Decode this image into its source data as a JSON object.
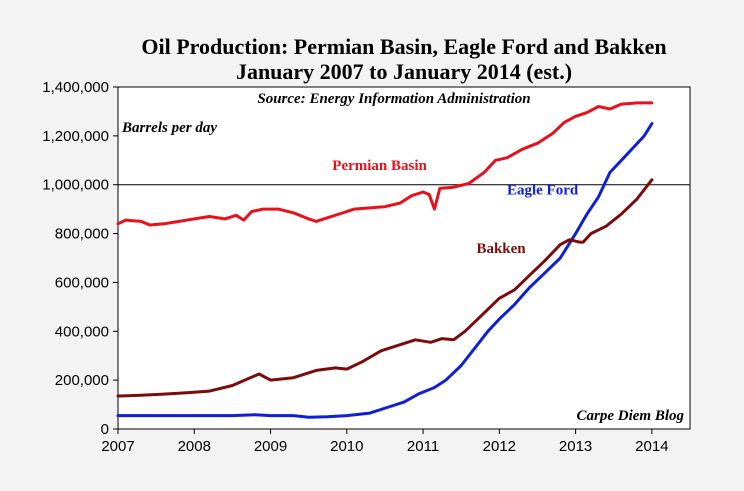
{
  "chart_data": {
    "type": "line",
    "title_lines": [
      "Oil Production: Permian Basin, Eagle Ford and Bakken",
      "January 2007 to January 2014 (est.)"
    ],
    "source": "Source: Energy Information Administration",
    "ylabel": "Barrels per day",
    "credit": "Carpe Diem Blog",
    "ylim": [
      0,
      1400000
    ],
    "xlim": [
      2007,
      2014.5
    ],
    "y_ticks": [
      0,
      200000,
      400000,
      600000,
      800000,
      1000000,
      1200000,
      1400000
    ],
    "y_tick_labels": [
      "0",
      "200,000",
      "400,000",
      "600,000",
      "800,000",
      "1,000,000",
      "1,200,000",
      "1,400,000"
    ],
    "x_ticks": [
      2007,
      2008,
      2009,
      2010,
      2011,
      2012,
      2013,
      2014
    ],
    "x_tick_labels": [
      "2007",
      "2008",
      "2009",
      "2010",
      "2011",
      "2012",
      "2013",
      "2014"
    ],
    "reference_line": 1000000,
    "grid": false,
    "series": [
      {
        "name": "Permian Basin",
        "color": "#e8111b",
        "points": [
          [
            2007.0,
            840000
          ],
          [
            2007.1,
            855000
          ],
          [
            2007.3,
            850000
          ],
          [
            2007.42,
            835000
          ],
          [
            2007.6,
            840000
          ],
          [
            2007.8,
            850000
          ],
          [
            2008.0,
            860000
          ],
          [
            2008.2,
            870000
          ],
          [
            2008.4,
            860000
          ],
          [
            2008.55,
            875000
          ],
          [
            2008.65,
            855000
          ],
          [
            2008.75,
            890000
          ],
          [
            2008.9,
            900000
          ],
          [
            2009.1,
            900000
          ],
          [
            2009.3,
            885000
          ],
          [
            2009.5,
            860000
          ],
          [
            2009.6,
            850000
          ],
          [
            2009.75,
            865000
          ],
          [
            2009.9,
            880000
          ],
          [
            2010.0,
            890000
          ],
          [
            2010.1,
            900000
          ],
          [
            2010.3,
            905000
          ],
          [
            2010.5,
            910000
          ],
          [
            2010.7,
            925000
          ],
          [
            2010.85,
            955000
          ],
          [
            2011.0,
            970000
          ],
          [
            2011.08,
            960000
          ],
          [
            2011.15,
            900000
          ],
          [
            2011.22,
            985000
          ],
          [
            2011.4,
            990000
          ],
          [
            2011.6,
            1005000
          ],
          [
            2011.8,
            1050000
          ],
          [
            2011.95,
            1100000
          ],
          [
            2012.1,
            1110000
          ],
          [
            2012.3,
            1145000
          ],
          [
            2012.5,
            1170000
          ],
          [
            2012.7,
            1210000
          ],
          [
            2012.85,
            1255000
          ],
          [
            2013.0,
            1280000
          ],
          [
            2013.15,
            1295000
          ],
          [
            2013.3,
            1320000
          ],
          [
            2013.45,
            1310000
          ],
          [
            2013.6,
            1330000
          ],
          [
            2013.8,
            1335000
          ],
          [
            2014.0,
            1335000
          ]
        ]
      },
      {
        "name": "Eagle Ford",
        "color": "#0e1fd6",
        "points": [
          [
            2007.0,
            55000
          ],
          [
            2007.5,
            55000
          ],
          [
            2007.8,
            55000
          ],
          [
            2008.0,
            55000
          ],
          [
            2008.5,
            55000
          ],
          [
            2008.8,
            58000
          ],
          [
            2009.0,
            55000
          ],
          [
            2009.3,
            55000
          ],
          [
            2009.5,
            48000
          ],
          [
            2009.75,
            50000
          ],
          [
            2010.0,
            55000
          ],
          [
            2010.3,
            65000
          ],
          [
            2010.55,
            90000
          ],
          [
            2010.75,
            110000
          ],
          [
            2010.95,
            145000
          ],
          [
            2011.15,
            170000
          ],
          [
            2011.3,
            200000
          ],
          [
            2011.5,
            260000
          ],
          [
            2011.7,
            340000
          ],
          [
            2011.85,
            400000
          ],
          [
            2012.0,
            450000
          ],
          [
            2012.2,
            510000
          ],
          [
            2012.4,
            580000
          ],
          [
            2012.6,
            640000
          ],
          [
            2012.8,
            700000
          ],
          [
            2013.0,
            800000
          ],
          [
            2013.15,
            880000
          ],
          [
            2013.3,
            950000
          ],
          [
            2013.45,
            1050000
          ],
          [
            2013.6,
            1100000
          ],
          [
            2013.75,
            1150000
          ],
          [
            2013.9,
            1200000
          ],
          [
            2014.0,
            1250000
          ]
        ]
      },
      {
        "name": "Bakken",
        "color": "#7a0c0c",
        "points": [
          [
            2007.0,
            135000
          ],
          [
            2007.3,
            138000
          ],
          [
            2007.6,
            143000
          ],
          [
            2007.9,
            148000
          ],
          [
            2008.2,
            155000
          ],
          [
            2008.5,
            178000
          ],
          [
            2008.7,
            205000
          ],
          [
            2008.85,
            225000
          ],
          [
            2009.0,
            200000
          ],
          [
            2009.3,
            210000
          ],
          [
            2009.6,
            240000
          ],
          [
            2009.85,
            250000
          ],
          [
            2010.0,
            245000
          ],
          [
            2010.2,
            275000
          ],
          [
            2010.45,
            320000
          ],
          [
            2010.7,
            345000
          ],
          [
            2010.9,
            365000
          ],
          [
            2011.1,
            355000
          ],
          [
            2011.25,
            370000
          ],
          [
            2011.4,
            365000
          ],
          [
            2011.55,
            400000
          ],
          [
            2011.7,
            445000
          ],
          [
            2011.85,
            490000
          ],
          [
            2012.0,
            535000
          ],
          [
            2012.2,
            570000
          ],
          [
            2012.4,
            630000
          ],
          [
            2012.6,
            690000
          ],
          [
            2012.8,
            755000
          ],
          [
            2012.92,
            775000
          ],
          [
            2013.05,
            765000
          ],
          [
            2013.1,
            765000
          ],
          [
            2013.2,
            800000
          ],
          [
            2013.4,
            830000
          ],
          [
            2013.6,
            880000
          ],
          [
            2013.8,
            940000
          ],
          [
            2014.0,
            1020000
          ]
        ]
      }
    ],
    "series_labels": [
      {
        "name": "Permian Basin",
        "x": 2011.05,
        "y": 1060000,
        "color": "#e8111b",
        "anchor": "end"
      },
      {
        "name": "Eagle Ford",
        "x": 2012.1,
        "y": 960000,
        "color": "#0e1fd6",
        "anchor": "start"
      },
      {
        "name": "Bakken",
        "x": 2011.7,
        "y": 720000,
        "color": "#7a0c0c",
        "anchor": "start"
      }
    ]
  }
}
